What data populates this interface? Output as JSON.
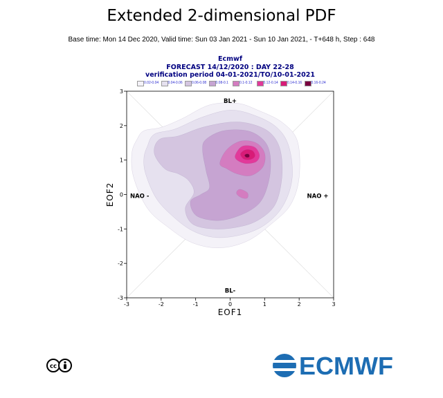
{
  "header": {
    "title": "Extended 2-dimensional PDF",
    "subtitle": "Base time: Mon 14 Dec 2020, Valid time: Sun 03 Jan 2021 - Sun 10 Jan 2021, - T+648 h, Step : 648"
  },
  "plot_header": {
    "line1": "Ecmwf",
    "line2": "FORECAST 14/12/2020 : DAY 22-28",
    "line3": "verification period 04-01-2021/TO/10-01-2021"
  },
  "legend": [
    {
      "label": "0.02-0.04",
      "color": "#f4f2f8"
    },
    {
      "label": "0.04-0.06",
      "color": "#e6e1ef"
    },
    {
      "label": "0.06-0.08",
      "color": "#d4c5e0"
    },
    {
      "label": "0.08-0.1",
      "color": "#c6a4d2"
    },
    {
      "label": "0.1-0.12",
      "color": "#d47cc0"
    },
    {
      "label": "0.12-0.14",
      "color": "#e2399a"
    },
    {
      "label": "0.14-0.16",
      "color": "#d81b77"
    },
    {
      "label": "0.16-0.24",
      "color": "#7a0040"
    }
  ],
  "chart_data": {
    "type": "contour",
    "xlabel": "EOF1",
    "ylabel": "EOF2",
    "xlim": [
      -3,
      3
    ],
    "ylim": [
      -3,
      3
    ],
    "x_ticks": [
      -3,
      -2,
      -1,
      0,
      1,
      2,
      3
    ],
    "y_ticks": [
      -3,
      -2,
      -1,
      0,
      1,
      2,
      3
    ],
    "x_tick_labels": [
      "-3",
      "-2",
      "-1",
      "0",
      "1",
      "2",
      "3"
    ],
    "y_tick_labels": [
      "-3",
      "-2",
      "-1",
      "0",
      "1",
      "2",
      "3"
    ],
    "regime_labels": {
      "top": "BL+",
      "bottom": "BL-",
      "left": "NAO -",
      "right": "NAO +"
    },
    "levels": [
      0.02,
      0.04,
      0.06,
      0.08,
      0.1,
      0.12,
      0.14,
      0.16
    ],
    "contours": [
      {
        "level": "0.02-0.04",
        "color": "#f4f2f8",
        "points": [
          [
            -2.7,
            1.6
          ],
          [
            -2.5,
            1.85
          ],
          [
            -2.0,
            1.95
          ],
          [
            -1.4,
            2.2
          ],
          [
            -0.6,
            2.6
          ],
          [
            0.2,
            2.65
          ],
          [
            0.8,
            2.45
          ],
          [
            1.5,
            2.1
          ],
          [
            1.95,
            1.55
          ],
          [
            2.0,
            0.5
          ],
          [
            1.75,
            -0.3
          ],
          [
            1.2,
            -0.85
          ],
          [
            0.5,
            -1.35
          ],
          [
            -0.3,
            -1.55
          ],
          [
            -1.1,
            -1.4
          ],
          [
            -1.8,
            -0.95
          ],
          [
            -2.4,
            -0.4
          ],
          [
            -2.8,
            0.5
          ],
          [
            -2.85,
            1.2
          ]
        ]
      },
      {
        "level": "0.04-0.06",
        "color": "#e6e1ef",
        "points": [
          [
            -2.4,
            1.4
          ],
          [
            -2.2,
            1.75
          ],
          [
            -1.6,
            1.9
          ],
          [
            -0.8,
            2.25
          ],
          [
            0.0,
            2.45
          ],
          [
            0.7,
            2.3
          ],
          [
            1.35,
            1.95
          ],
          [
            1.7,
            1.4
          ],
          [
            1.8,
            0.5
          ],
          [
            1.55,
            -0.3
          ],
          [
            1.05,
            -0.85
          ],
          [
            0.4,
            -1.15
          ],
          [
            -0.4,
            -1.25
          ],
          [
            -1.1,
            -1.05
          ],
          [
            -1.7,
            -0.6
          ],
          [
            -2.15,
            -0.1
          ],
          [
            -2.45,
            0.6
          ],
          [
            -2.5,
            1.05
          ]
        ]
      },
      {
        "level": "0.06-0.08",
        "color": "#d4c5e0",
        "points": [
          [
            -2.2,
            1.2
          ],
          [
            -2.05,
            1.6
          ],
          [
            -1.5,
            1.7
          ],
          [
            -0.8,
            1.95
          ],
          [
            0.0,
            2.1
          ],
          [
            0.6,
            2.05
          ],
          [
            1.15,
            1.8
          ],
          [
            1.45,
            1.3
          ],
          [
            1.5,
            0.5
          ],
          [
            1.3,
            -0.3
          ],
          [
            0.8,
            -0.75
          ],
          [
            0.2,
            -0.95
          ],
          [
            -0.5,
            -1.0
          ],
          [
            -1.1,
            -0.85
          ],
          [
            -1.3,
            -0.4
          ],
          [
            -1.05,
            0.05
          ],
          [
            -1.2,
            0.4
          ],
          [
            -1.5,
            0.6
          ],
          [
            -1.9,
            0.75
          ]
        ]
      },
      {
        "level": "0.08-0.1",
        "color": "#c6a4d2",
        "points": [
          [
            -0.8,
            1.3
          ],
          [
            -0.7,
            1.6
          ],
          [
            -0.2,
            1.85
          ],
          [
            0.5,
            1.85
          ],
          [
            0.95,
            1.6
          ],
          [
            1.15,
            1.2
          ],
          [
            1.15,
            0.55
          ],
          [
            0.95,
            -0.1
          ],
          [
            0.6,
            -0.45
          ],
          [
            0.0,
            -0.7
          ],
          [
            -0.5,
            -0.75
          ],
          [
            -1.0,
            -0.6
          ],
          [
            -1.15,
            -0.2
          ],
          [
            -0.85,
            0.0
          ],
          [
            -0.6,
            0.2
          ],
          [
            -0.7,
            0.7
          ]
        ]
      },
      {
        "level": "0.1-0.12",
        "color": "#d47cc0",
        "points": [
          [
            -0.3,
            0.9
          ],
          [
            -0.1,
            1.3
          ],
          [
            0.3,
            1.55
          ],
          [
            0.75,
            1.5
          ],
          [
            1.0,
            1.2
          ],
          [
            0.95,
            0.8
          ],
          [
            0.6,
            0.55
          ],
          [
            0.2,
            0.6
          ],
          [
            -0.1,
            0.75
          ]
        ]
      },
      {
        "level": "0.1-0.12b",
        "color": "#d47cc0",
        "points": [
          [
            0.2,
            0.1
          ],
          [
            0.3,
            0.15
          ],
          [
            0.5,
            0.05
          ],
          [
            0.5,
            -0.1
          ],
          [
            0.35,
            -0.1
          ],
          [
            0.2,
            0.0
          ]
        ]
      },
      {
        "level": "0.12-0.14",
        "color": "#e2399a",
        "points": [
          [
            0.15,
            1.15
          ],
          [
            0.35,
            1.4
          ],
          [
            0.7,
            1.38
          ],
          [
            0.85,
            1.15
          ],
          [
            0.75,
            0.95
          ],
          [
            0.45,
            0.9
          ],
          [
            0.2,
            1.0
          ]
        ]
      },
      {
        "level": "0.14-0.16",
        "color": "#d81b77",
        "points": [
          [
            0.3,
            1.18
          ],
          [
            0.45,
            1.3
          ],
          [
            0.65,
            1.27
          ],
          [
            0.72,
            1.12
          ],
          [
            0.6,
            1.02
          ],
          [
            0.4,
            1.03
          ]
        ]
      },
      {
        "level": "0.16-0.24",
        "color": "#7a0040",
        "points": [
          [
            0.42,
            1.14
          ],
          [
            0.48,
            1.18
          ],
          [
            0.55,
            1.16
          ],
          [
            0.55,
            1.09
          ],
          [
            0.47,
            1.08
          ]
        ]
      }
    ]
  }
}
